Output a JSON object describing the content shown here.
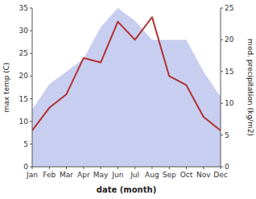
{
  "chart_data": {
    "type": "line",
    "categories": [
      "Jan",
      "Feb",
      "Mar",
      "Apr",
      "May",
      "Jun",
      "Jul",
      "Aug",
      "Sep",
      "Oct",
      "Nov",
      "Dec"
    ],
    "series": [
      {
        "type": "area",
        "axis": "y2",
        "color": "#c8cef0",
        "values": [
          9,
          13,
          15,
          17,
          22,
          25,
          23,
          20,
          20,
          20,
          15,
          11
        ]
      },
      {
        "type": "line",
        "color": "#b03030",
        "values": [
          8,
          13,
          16,
          24,
          23,
          32,
          28,
          33,
          20,
          18,
          11,
          8
        ]
      }
    ],
    "x_label": "date (month)",
    "y_label": "max temp (C)",
    "y2_label": "med. precipitation (kg/m2)",
    "ylim": [
      0,
      35
    ],
    "yticks": [
      0,
      5,
      10,
      15,
      20,
      25,
      30,
      35
    ],
    "y2lim": [
      0,
      25
    ],
    "y2ticks": [
      0,
      5,
      10,
      15,
      20,
      25
    ],
    "grid": false
  }
}
